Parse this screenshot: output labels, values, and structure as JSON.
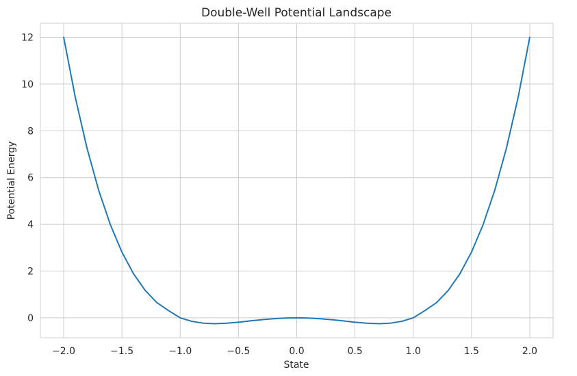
{
  "chart_data": {
    "type": "line",
    "title": "Double-Well Potential Landscape",
    "xlabel": "State",
    "ylabel": "Potential Energy",
    "xlim": [
      -2.2,
      2.2
    ],
    "ylim": [
      -0.85,
      12.6
    ],
    "xticks": [
      -2.0,
      -1.5,
      -1.0,
      -0.5,
      0.0,
      0.5,
      1.0,
      1.5,
      2.0
    ],
    "xtick_labels": [
      "−2.0",
      "−1.5",
      "−1.0",
      "−0.5",
      "0.0",
      "0.5",
      "1.0",
      "1.5",
      "2.0"
    ],
    "yticks": [
      0,
      2,
      4,
      6,
      8,
      10,
      12
    ],
    "ytick_labels": [
      "0",
      "2",
      "4",
      "6",
      "8",
      "10",
      "12"
    ],
    "grid": true,
    "series": [
      {
        "color": "#1f77b4",
        "x": [
          -2.0,
          -1.9,
          -1.8,
          -1.7,
          -1.6,
          -1.5,
          -1.4,
          -1.3,
          -1.2,
          -1.1,
          -1.0,
          -0.9,
          -0.8,
          -0.7071,
          -0.6,
          -0.5,
          -0.4,
          -0.3,
          -0.2,
          -0.1,
          0.0,
          0.1,
          0.2,
          0.3,
          0.4,
          0.5,
          0.6,
          0.7071,
          0.8,
          0.9,
          1.0,
          1.1,
          1.2,
          1.3,
          1.4,
          1.5,
          1.6,
          1.7,
          1.8,
          1.9,
          2.0
        ],
        "y": [
          12.0,
          9.42,
          7.26,
          5.46,
          3.99,
          2.81,
          1.88,
          1.17,
          0.65,
          0.31,
          0.0,
          -0.15,
          -0.23,
          -0.25,
          -0.23,
          -0.19,
          -0.13,
          -0.08,
          -0.04,
          -0.01,
          0.0,
          -0.01,
          -0.04,
          -0.08,
          -0.13,
          -0.19,
          -0.23,
          -0.25,
          -0.23,
          -0.15,
          0.0,
          0.31,
          0.65,
          1.17,
          1.88,
          2.81,
          3.99,
          5.46,
          7.26,
          9.42,
          12.0
        ]
      }
    ]
  }
}
